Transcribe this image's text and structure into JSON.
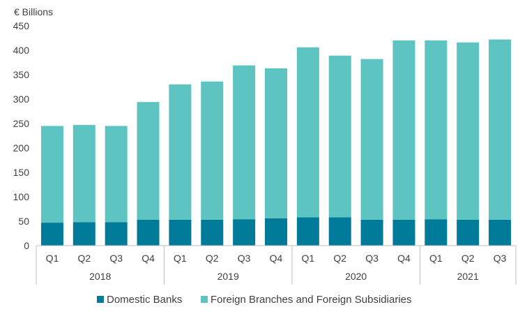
{
  "chart_data": {
    "type": "bar",
    "stacked": true,
    "unit_label": "€ Billions",
    "title": "",
    "xlabel": "",
    "ylabel": "",
    "ylim": [
      0,
      450
    ],
    "yticks": [
      0,
      50,
      100,
      150,
      200,
      250,
      300,
      350,
      400,
      450
    ],
    "grid": false,
    "legend_position": "bottom",
    "categories": [
      "Q1",
      "Q2",
      "Q3",
      "Q4",
      "Q1",
      "Q2",
      "Q3",
      "Q4",
      "Q1",
      "Q2",
      "Q3",
      "Q4",
      "Q1",
      "Q2",
      "Q3"
    ],
    "groups": [
      {
        "label": "2018",
        "count": 4
      },
      {
        "label": "2019",
        "count": 4
      },
      {
        "label": "2020",
        "count": 4
      },
      {
        "label": "2021",
        "count": 3
      }
    ],
    "series": [
      {
        "name": "Domestic Banks",
        "color": "#007a99",
        "values": [
          47,
          48,
          48,
          53,
          53,
          53,
          54,
          56,
          58,
          58,
          53,
          53,
          54,
          53,
          53
        ]
      },
      {
        "name": "Foreign Branches and Foreign Subsidiaries",
        "color": "#5ec4c1",
        "values": [
          198,
          199,
          197,
          241,
          277,
          283,
          315,
          307,
          348,
          331,
          329,
          367,
          366,
          363,
          369
        ]
      }
    ]
  }
}
